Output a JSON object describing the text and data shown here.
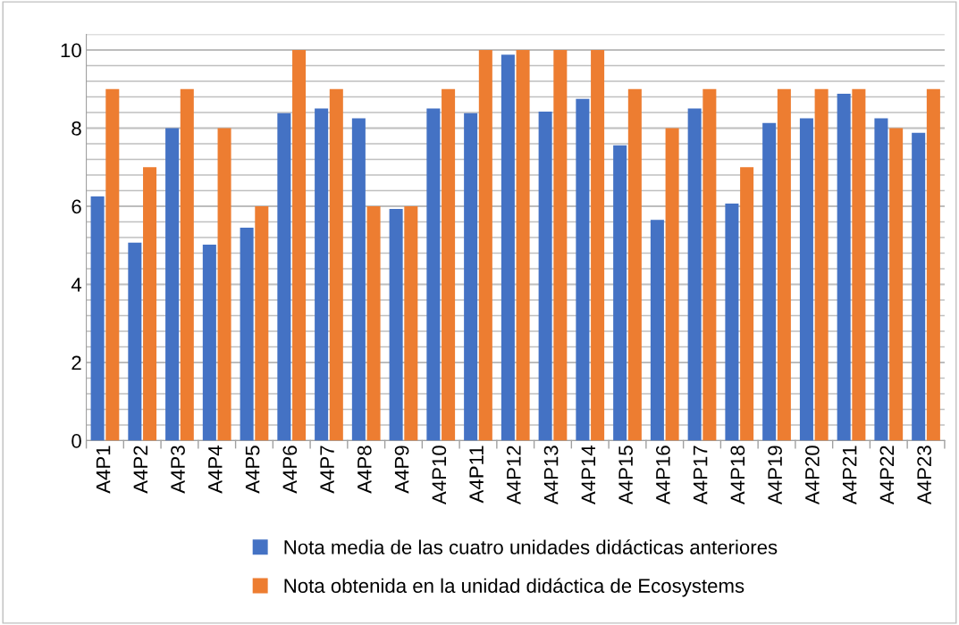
{
  "chart_data": {
    "type": "bar",
    "categories": [
      "A4P1",
      "A4P2",
      "A4P3",
      "A4P4",
      "A4P5",
      "A4P6",
      "A4P7",
      "A4P8",
      "A4P9",
      "A4P10",
      "A4P11",
      "A4P12",
      "A4P13",
      "A4P14",
      "A4P15",
      "A4P16",
      "A4P17",
      "A4P18",
      "A4P19",
      "A4P20",
      "A4P21",
      "A4P22",
      "A4P23"
    ],
    "series": [
      {
        "name": "Nota media de las cuatro unidades didácticas anteriores",
        "color": "#4472c4",
        "values": [
          6.25,
          5.07,
          8.0,
          5.02,
          5.45,
          8.38,
          8.5,
          8.25,
          5.93,
          8.5,
          8.38,
          9.88,
          8.42,
          8.75,
          7.56,
          5.65,
          8.5,
          6.07,
          8.13,
          8.25,
          8.88,
          8.25,
          7.88
        ]
      },
      {
        "name": "Nota obtenida en la unidad didáctica de Ecosystems",
        "color": "#ed7d31",
        "values": [
          9,
          7,
          9,
          8,
          6,
          10,
          9,
          6,
          6,
          9,
          10,
          10,
          10,
          10,
          9,
          8,
          9,
          7,
          9,
          9,
          9,
          8,
          9
        ]
      }
    ],
    "ylim": [
      0,
      10.4
    ],
    "yticks": [
      0,
      2,
      4,
      6,
      8,
      10
    ],
    "grid": "y",
    "legend": "bottom"
  }
}
